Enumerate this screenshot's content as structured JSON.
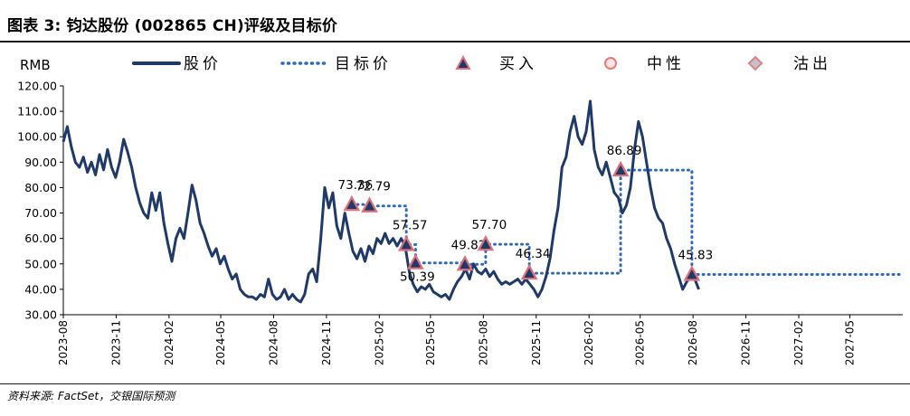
{
  "figure_title": "图表 3: 钧达股份 (002865 CH)评级及目标价",
  "source": "资料来源: FactSet，交银国际预测",
  "colors": {
    "price": "#1f3a68",
    "target": "#2e6bbf",
    "marker_fill": "#1f3a68",
    "marker_stroke": "#e0707a",
    "neutral": "#e87a7a",
    "sell": "#e08080"
  },
  "chart_data": {
    "type": "line",
    "ylabel": "RMB",
    "ylim": [
      30,
      120
    ],
    "yticks": [
      "30.00",
      "40.00",
      "50.00",
      "60.00",
      "70.00",
      "80.00",
      "90.00",
      "100.00",
      "110.00",
      "120.00"
    ],
    "ytick_values": [
      30,
      40,
      50,
      60,
      70,
      80,
      90,
      100,
      110,
      120
    ],
    "xlim": [
      "2023-08",
      "2027-08"
    ],
    "xticks": [
      "2023-08",
      "2023-11",
      "2024-02",
      "2024-05",
      "2024-08",
      "2024-11",
      "2025-02",
      "2025-05",
      "2025-08",
      "2025-11",
      "2026-02",
      "2026-05",
      "2026-08",
      "2026-11",
      "2027-02",
      "2027-05"
    ],
    "grid": false,
    "legend": {
      "placement": "top",
      "entries": [
        {
          "label": "股价",
          "style": "line-solid"
        },
        {
          "label": "目标价",
          "style": "line-dotted"
        },
        {
          "label": "买入",
          "style": "triangle"
        },
        {
          "label": "中性",
          "style": "circle"
        },
        {
          "label": "沽出",
          "style": "diamond"
        }
      ]
    },
    "series": [
      {
        "name": "股价",
        "style": "solid",
        "points": [
          [
            "2023-08-01",
            98
          ],
          [
            "2023-08-08",
            104
          ],
          [
            "2023-08-15",
            96
          ],
          [
            "2023-08-22",
            90
          ],
          [
            "2023-08-29",
            88
          ],
          [
            "2023-09-05",
            92
          ],
          [
            "2023-09-12",
            86
          ],
          [
            "2023-09-19",
            90
          ],
          [
            "2023-09-26",
            85
          ],
          [
            "2023-10-03",
            93
          ],
          [
            "2023-10-10",
            87
          ],
          [
            "2023-10-17",
            95
          ],
          [
            "2023-10-24",
            88
          ],
          [
            "2023-10-31",
            84
          ],
          [
            "2023-11-07",
            90
          ],
          [
            "2023-11-14",
            99
          ],
          [
            "2023-11-21",
            94
          ],
          [
            "2023-11-28",
            88
          ],
          [
            "2023-12-05",
            80
          ],
          [
            "2023-12-12",
            74
          ],
          [
            "2023-12-19",
            70
          ],
          [
            "2023-12-26",
            68
          ],
          [
            "2024-01-02",
            78
          ],
          [
            "2024-01-09",
            71
          ],
          [
            "2024-01-16",
            78
          ],
          [
            "2024-01-23",
            66
          ],
          [
            "2024-01-30",
            58
          ],
          [
            "2024-02-06",
            51
          ],
          [
            "2024-02-13",
            60
          ],
          [
            "2024-02-20",
            64
          ],
          [
            "2024-02-27",
            60
          ],
          [
            "2024-03-05",
            70
          ],
          [
            "2024-03-12",
            81
          ],
          [
            "2024-03-19",
            75
          ],
          [
            "2024-03-26",
            66
          ],
          [
            "2024-04-02",
            62
          ],
          [
            "2024-04-09",
            57
          ],
          [
            "2024-04-16",
            53
          ],
          [
            "2024-04-23",
            56
          ],
          [
            "2024-04-30",
            50
          ],
          [
            "2024-05-07",
            53
          ],
          [
            "2024-05-14",
            48
          ],
          [
            "2024-05-21",
            44
          ],
          [
            "2024-05-28",
            46
          ],
          [
            "2024-06-04",
            40
          ],
          [
            "2024-06-11",
            38
          ],
          [
            "2024-06-18",
            37
          ],
          [
            "2024-06-25",
            37
          ],
          [
            "2024-07-02",
            36
          ],
          [
            "2024-07-09",
            38
          ],
          [
            "2024-07-16",
            37
          ],
          [
            "2024-07-23",
            44
          ],
          [
            "2024-07-30",
            38
          ],
          [
            "2024-08-06",
            36
          ],
          [
            "2024-08-13",
            37
          ],
          [
            "2024-08-20",
            40
          ],
          [
            "2024-08-27",
            36
          ],
          [
            "2024-09-03",
            38
          ],
          [
            "2024-09-10",
            36
          ],
          [
            "2024-09-17",
            35
          ],
          [
            "2024-09-24",
            38
          ],
          [
            "2024-10-01",
            46
          ],
          [
            "2024-10-08",
            48
          ],
          [
            "2024-10-15",
            43
          ],
          [
            "2024-10-22",
            60
          ],
          [
            "2024-10-29",
            80
          ],
          [
            "2024-11-05",
            72
          ],
          [
            "2024-11-12",
            78
          ],
          [
            "2024-11-19",
            65
          ],
          [
            "2024-11-26",
            60
          ],
          [
            "2024-12-03",
            70
          ],
          [
            "2024-12-10",
            62
          ],
          [
            "2024-12-17",
            55
          ],
          [
            "2024-12-24",
            52
          ],
          [
            "2024-12-31",
            56
          ],
          [
            "2025-01-07",
            51
          ],
          [
            "2025-01-14",
            57
          ],
          [
            "2025-01-21",
            54
          ],
          [
            "2025-01-28",
            60
          ],
          [
            "2025-02-04",
            58
          ],
          [
            "2025-02-11",
            62
          ],
          [
            "2025-02-18",
            58
          ],
          [
            "2025-02-25",
            60
          ],
          [
            "2025-03-04",
            57
          ],
          [
            "2025-03-11",
            60
          ],
          [
            "2025-03-18",
            57
          ],
          [
            "2025-03-25",
            47
          ],
          [
            "2025-04-01",
            42
          ],
          [
            "2025-04-08",
            39
          ],
          [
            "2025-04-15",
            41
          ],
          [
            "2025-04-22",
            40
          ],
          [
            "2025-04-29",
            42
          ],
          [
            "2025-05-06",
            39
          ],
          [
            "2025-05-13",
            38
          ],
          [
            "2025-05-20",
            37
          ],
          [
            "2025-05-27",
            38
          ],
          [
            "2025-06-03",
            36
          ],
          [
            "2025-06-10",
            40
          ],
          [
            "2025-06-17",
            43
          ],
          [
            "2025-06-24",
            45
          ],
          [
            "2025-07-01",
            48
          ],
          [
            "2025-07-08",
            44
          ],
          [
            "2025-07-15",
            50
          ],
          [
            "2025-07-22",
            47
          ],
          [
            "2025-07-29",
            46
          ],
          [
            "2025-08-05",
            48
          ],
          [
            "2025-08-12",
            45
          ],
          [
            "2025-08-19",
            47
          ],
          [
            "2025-08-26",
            44
          ],
          [
            "2025-09-02",
            42
          ],
          [
            "2025-09-09",
            43
          ],
          [
            "2025-09-16",
            42
          ],
          [
            "2025-09-23",
            43
          ],
          [
            "2025-09-30",
            44
          ],
          [
            "2025-10-07",
            42
          ],
          [
            "2025-10-14",
            44
          ],
          [
            "2025-10-21",
            42
          ],
          [
            "2025-10-28",
            40
          ],
          [
            "2025-11-04",
            37
          ],
          [
            "2025-11-11",
            40
          ],
          [
            "2025-11-18",
            45
          ],
          [
            "2025-11-25",
            52
          ],
          [
            "2025-12-02",
            63
          ],
          [
            "2025-12-09",
            72
          ],
          [
            "2025-12-16",
            88
          ],
          [
            "2025-12-23",
            92
          ],
          [
            "2025-12-30",
            102
          ],
          [
            "2026-01-06",
            108
          ],
          [
            "2026-01-13",
            100
          ],
          [
            "2026-01-20",
            97
          ],
          [
            "2026-01-27",
            102
          ],
          [
            "2026-02-03",
            114
          ],
          [
            "2026-02-10",
            95
          ],
          [
            "2026-02-17",
            88
          ],
          [
            "2026-02-24",
            85
          ],
          [
            "2026-03-03",
            90
          ],
          [
            "2026-03-10",
            84
          ],
          [
            "2026-03-17",
            78
          ],
          [
            "2026-03-24",
            76
          ],
          [
            "2026-03-31",
            70
          ],
          [
            "2026-04-07",
            73
          ],
          [
            "2026-04-14",
            80
          ],
          [
            "2026-04-21",
            95
          ],
          [
            "2026-04-28",
            106
          ],
          [
            "2026-05-05",
            100
          ],
          [
            "2026-05-12",
            90
          ],
          [
            "2026-05-19",
            80
          ],
          [
            "2026-05-26",
            72
          ],
          [
            "2026-06-02",
            68
          ],
          [
            "2026-06-09",
            66
          ],
          [
            "2026-06-16",
            60
          ],
          [
            "2026-06-23",
            56
          ],
          [
            "2026-06-30",
            50
          ],
          [
            "2026-07-07",
            45
          ],
          [
            "2026-07-14",
            40
          ],
          [
            "2026-07-21",
            43
          ],
          [
            "2026-07-28",
            45
          ],
          [
            "2026-08-04",
            44
          ],
          [
            "2026-08-11",
            40
          ]
        ]
      },
      {
        "name": "目标价",
        "style": "dotted",
        "points": [
          [
            "2024-12-15",
            73.36
          ],
          [
            "2025-01-15",
            73.36
          ],
          [
            "2025-01-15",
            72.79
          ],
          [
            "2025-03-20",
            72.79
          ],
          [
            "2025-03-20",
            57.57
          ],
          [
            "2025-04-05",
            57.57
          ],
          [
            "2025-04-05",
            50.39
          ],
          [
            "2025-06-30",
            50.39
          ],
          [
            "2025-06-30",
            49.82
          ],
          [
            "2025-08-05",
            49.82
          ],
          [
            "2025-08-05",
            57.7
          ],
          [
            "2025-10-20",
            57.7
          ],
          [
            "2025-10-20",
            46.34
          ],
          [
            "2026-03-28",
            46.34
          ],
          [
            "2026-03-28",
            86.89
          ],
          [
            "2026-07-30",
            86.89
          ],
          [
            "2026-07-30",
            45.83
          ],
          [
            "2027-08-01",
            45.83
          ]
        ]
      }
    ],
    "ratings": [
      {
        "date": "2024-12-15",
        "value": 73.36,
        "rating": "买入",
        "label": "73.36"
      },
      {
        "date": "2025-01-15",
        "value": 72.79,
        "rating": "买入",
        "label": "72.79"
      },
      {
        "date": "2025-03-20",
        "value": 57.57,
        "rating": "买入",
        "label": "57.57"
      },
      {
        "date": "2025-04-05",
        "value": 50.39,
        "rating": "买入",
        "label": "50.39"
      },
      {
        "date": "2025-06-30",
        "value": 49.82,
        "rating": "买入",
        "label": "49.82"
      },
      {
        "date": "2025-08-05",
        "value": 57.7,
        "rating": "买入",
        "label": "57.70"
      },
      {
        "date": "2025-10-20",
        "value": 46.34,
        "rating": "买入",
        "label": "46.34"
      },
      {
        "date": "2026-03-28",
        "value": 86.89,
        "rating": "买入",
        "label": "86.89"
      },
      {
        "date": "2026-07-30",
        "value": 45.83,
        "rating": "买入",
        "label": "45.83"
      }
    ]
  }
}
